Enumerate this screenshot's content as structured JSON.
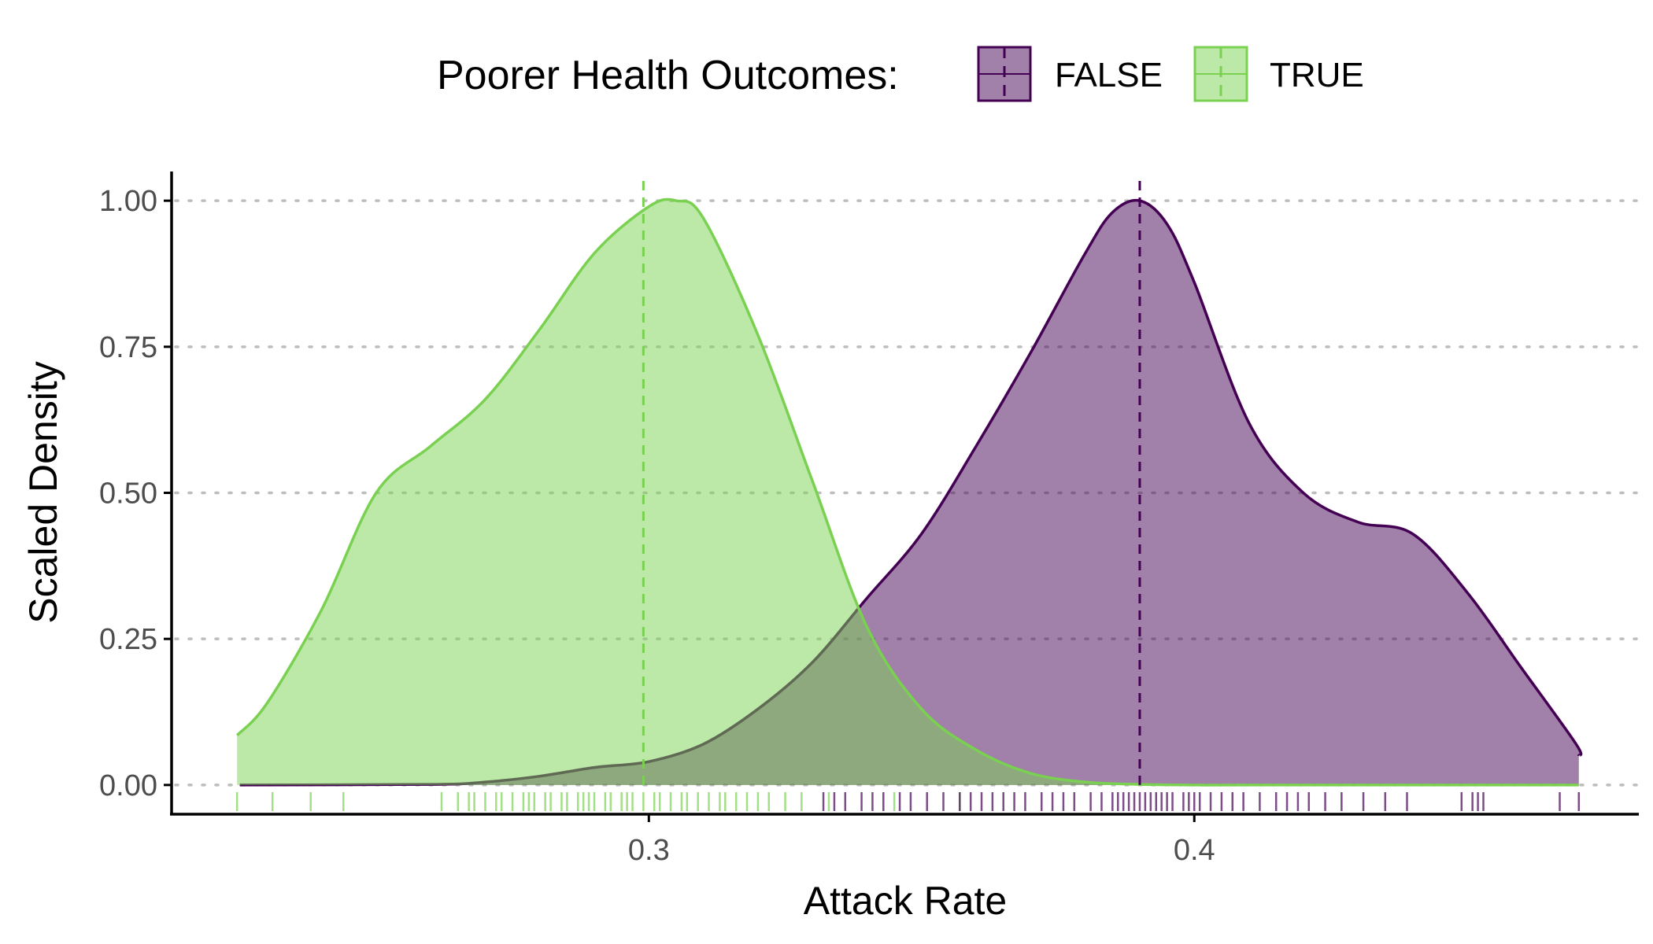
{
  "chart_data": {
    "type": "area",
    "xlabel": "Attack Rate",
    "ylabel": "Scaled Density",
    "xlim": [
      0.2125,
      0.4815
    ],
    "ylim": [
      -0.05,
      1.05
    ],
    "x_ticks": [
      0.3,
      0.4
    ],
    "x_tick_labels": [
      "0.3",
      "0.4"
    ],
    "y_ticks": [
      0.0,
      0.25,
      0.5,
      0.75,
      1.0
    ],
    "y_tick_labels": [
      "0.00",
      "0.25",
      "0.50",
      "0.75",
      "1.00"
    ],
    "grid": "horizontal dotted major",
    "legend": {
      "title": "Poorer Health Outcomes:",
      "position": "top",
      "entries": [
        "FALSE",
        "TRUE"
      ]
    },
    "series": [
      {
        "name": "FALSE",
        "fill": "#440154",
        "fill_opacity": 0.5,
        "stroke": "#440154",
        "median": 0.39,
        "x": [
          0.225,
          0.26,
          0.27,
          0.28,
          0.29,
          0.3,
          0.31,
          0.32,
          0.33,
          0.34,
          0.35,
          0.36,
          0.37,
          0.38,
          0.385,
          0.39,
          0.395,
          0.4,
          0.41,
          0.42,
          0.43,
          0.44,
          0.45,
          0.46,
          0.47,
          0.4705
        ],
        "y": [
          0.0,
          0.001,
          0.005,
          0.015,
          0.03,
          0.04,
          0.07,
          0.13,
          0.21,
          0.32,
          0.43,
          0.58,
          0.74,
          0.91,
          0.98,
          1.0,
          0.96,
          0.86,
          0.62,
          0.5,
          0.45,
          0.43,
          0.33,
          0.2,
          0.07,
          0.05
        ]
      },
      {
        "name": "TRUE",
        "fill": "#7ad151",
        "fill_opacity": 0.5,
        "stroke": "#7ad151",
        "median": 0.299,
        "x": [
          0.2245,
          0.23,
          0.24,
          0.25,
          0.26,
          0.27,
          0.28,
          0.29,
          0.3,
          0.305,
          0.31,
          0.32,
          0.33,
          0.34,
          0.35,
          0.36,
          0.37,
          0.38,
          0.39,
          0.4,
          0.41,
          0.4705
        ],
        "y": [
          0.085,
          0.14,
          0.3,
          0.5,
          0.58,
          0.66,
          0.78,
          0.91,
          0.99,
          1.0,
          0.97,
          0.77,
          0.52,
          0.27,
          0.13,
          0.06,
          0.02,
          0.005,
          0.001,
          0.0,
          0.0,
          0.0
        ]
      }
    ],
    "rug": [
      {
        "name": "TRUE",
        "color": "#7ad151",
        "x": [
          0.2245,
          0.231,
          0.238,
          0.244,
          0.262,
          0.265,
          0.267,
          0.268,
          0.27,
          0.272,
          0.273,
          0.275,
          0.277,
          0.278,
          0.279,
          0.281,
          0.282,
          0.284,
          0.285,
          0.287,
          0.288,
          0.289,
          0.29,
          0.292,
          0.293,
          0.295,
          0.296,
          0.297,
          0.299,
          0.301,
          0.302,
          0.304,
          0.306,
          0.307,
          0.309,
          0.311,
          0.313,
          0.314,
          0.316,
          0.318,
          0.32,
          0.322,
          0.325,
          0.328,
          0.333,
          0.345,
          0.357
        ]
      },
      {
        "name": "FALSE",
        "color": "#440154",
        "x": [
          0.332,
          0.334,
          0.336,
          0.339,
          0.341,
          0.343,
          0.346,
          0.348,
          0.351,
          0.354,
          0.357,
          0.359,
          0.361,
          0.363,
          0.365,
          0.367,
          0.369,
          0.372,
          0.374,
          0.376,
          0.378,
          0.381,
          0.383,
          0.385,
          0.386,
          0.387,
          0.388,
          0.389,
          0.39,
          0.391,
          0.392,
          0.393,
          0.394,
          0.395,
          0.396,
          0.398,
          0.399,
          0.4,
          0.401,
          0.403,
          0.405,
          0.407,
          0.409,
          0.412,
          0.415,
          0.417,
          0.419,
          0.421,
          0.424,
          0.427,
          0.431,
          0.435,
          0.439,
          0.449,
          0.451,
          0.452,
          0.453,
          0.467,
          0.4705
        ]
      }
    ]
  }
}
